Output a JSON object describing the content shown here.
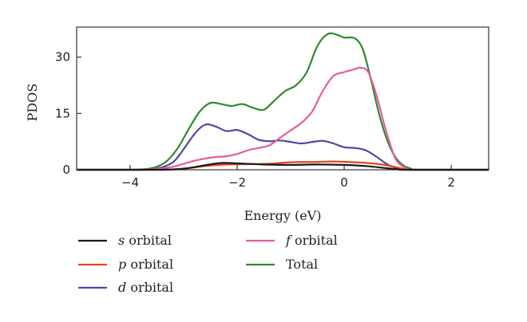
{
  "chart_data": {
    "type": "line",
    "title": "",
    "xlabel": "Energy (eV)",
    "ylabel": "PDOS",
    "xlim": [
      -5,
      2.7
    ],
    "ylim": [
      0,
      38
    ],
    "xticks": [
      -4,
      -2,
      0,
      2
    ],
    "xtick_labels": [
      "−4",
      "−2",
      "0",
      "2"
    ],
    "yticks": [
      0,
      15,
      30
    ],
    "ytick_labels": [
      "0",
      "15",
      "30"
    ],
    "grid": false,
    "legend_position": "bottom",
    "series": [
      {
        "name": "s orbital",
        "italic": "s",
        "suffix": " orbital",
        "color": "#1a1a1a",
        "x": [
          -5,
          -3.5,
          -3,
          -2.6,
          -2.3,
          -2.0,
          -1.5,
          -1.0,
          -0.5,
          0,
          0.4,
          0.8,
          1.0,
          1.2,
          2.7
        ],
        "y": [
          0,
          0,
          0.3,
          1.2,
          1.8,
          1.7,
          1.4,
          1.3,
          1.4,
          1.3,
          1.0,
          0.4,
          0.15,
          0,
          0
        ]
      },
      {
        "name": "p orbital",
        "italic": "p",
        "suffix": " orbital",
        "color": "#e8431f",
        "x": [
          -5,
          -3.5,
          -3,
          -2.6,
          -2.2,
          -1.8,
          -1.4,
          -1.0,
          -0.5,
          -0.2,
          0.2,
          0.6,
          0.9,
          1.1,
          1.3,
          2.7
        ],
        "y": [
          0,
          0,
          0.3,
          1.0,
          1.4,
          1.5,
          1.6,
          2.0,
          2.1,
          2.2,
          2.0,
          1.6,
          0.9,
          0.3,
          0,
          0
        ]
      },
      {
        "name": "d orbital",
        "italic": "d",
        "suffix": " orbital",
        "color": "#5444a8",
        "x": [
          -5,
          -3.8,
          -3.5,
          -3.2,
          -3.0,
          -2.8,
          -2.6,
          -2.4,
          -2.2,
          -2.0,
          -1.8,
          -1.6,
          -1.4,
          -1.2,
          -1.0,
          -0.8,
          -0.6,
          -0.4,
          -0.2,
          0,
          0.2,
          0.4,
          0.6,
          0.8,
          1.0,
          1.2,
          2.7
        ],
        "y": [
          0,
          0,
          0.3,
          2.0,
          5.5,
          9.5,
          12.0,
          11.5,
          10.3,
          10.6,
          9.5,
          8.0,
          7.6,
          7.8,
          7.4,
          7.0,
          7.4,
          7.7,
          7.0,
          6.0,
          5.8,
          5.2,
          3.5,
          1.5,
          0.4,
          0,
          0
        ]
      },
      {
        "name": "f orbital",
        "italic": "f",
        "suffix": " orbital",
        "color": "#e55c9e",
        "x": [
          -5,
          -3.8,
          -3.5,
          -3.2,
          -3.0,
          -2.8,
          -2.6,
          -2.4,
          -2.2,
          -2.0,
          -1.8,
          -1.6,
          -1.4,
          -1.2,
          -1.0,
          -0.8,
          -0.6,
          -0.4,
          -0.2,
          0,
          0.2,
          0.3,
          0.45,
          0.6,
          0.75,
          0.9,
          1.0,
          1.15,
          1.3,
          2.7
        ],
        "y": [
          0,
          0,
          0.2,
          0.8,
          1.6,
          2.4,
          3.0,
          3.4,
          3.6,
          4.2,
          5.2,
          5.8,
          6.5,
          8.5,
          10.5,
          12.5,
          15.5,
          21.0,
          25.0,
          26.0,
          26.8,
          27.2,
          26.0,
          20.0,
          12.0,
          5.0,
          2.0,
          0.5,
          0,
          0
        ]
      },
      {
        "name": "Total",
        "italic": "",
        "suffix": "Total",
        "color": "#2f8a2f",
        "x": [
          -5,
          -4.0,
          -3.7,
          -3.5,
          -3.3,
          -3.1,
          -2.9,
          -2.7,
          -2.5,
          -2.3,
          -2.1,
          -1.9,
          -1.7,
          -1.5,
          -1.3,
          -1.1,
          -0.9,
          -0.7,
          -0.5,
          -0.3,
          -0.1,
          0,
          0.2,
          0.35,
          0.5,
          0.65,
          0.8,
          0.95,
          1.1,
          1.25,
          1.4,
          2.7
        ],
        "y": [
          0,
          0,
          0.2,
          0.8,
          2.5,
          6.0,
          11.0,
          15.5,
          17.8,
          17.5,
          17.0,
          17.5,
          16.5,
          16.0,
          18.5,
          21.0,
          22.5,
          26.0,
          33.0,
          36.2,
          35.8,
          35.2,
          35.0,
          32.0,
          24.0,
          15.0,
          8.0,
          3.5,
          1.2,
          0.3,
          0,
          0
        ]
      }
    ]
  }
}
